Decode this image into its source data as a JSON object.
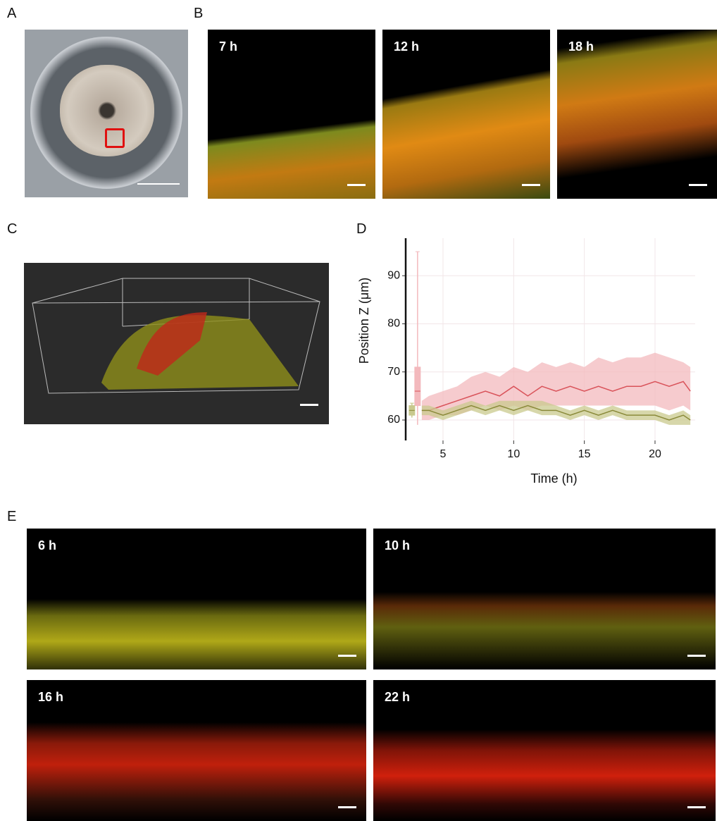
{
  "panels": [
    {
      "label": "A"
    },
    {
      "label": "B",
      "images": [
        "7 h",
        "12 h",
        "18 h"
      ]
    },
    {
      "label": "C"
    },
    {
      "label": "D"
    },
    {
      "label": "E",
      "images": [
        "6 h",
        "10 h",
        "16 h",
        "22 h"
      ]
    }
  ],
  "chart_data": {
    "type": "line",
    "x_label": "Time (h)",
    "y_label": "Position Z (μm)",
    "x": [
      3.5,
      4,
      5,
      6,
      7,
      8,
      9,
      10,
      11,
      12,
      13,
      14,
      15,
      16,
      17,
      18,
      19,
      20,
      21,
      22,
      22.5
    ],
    "series": [
      {
        "color": "#d9535a",
        "band_color": "#f3b9bd",
        "values": [
          62,
          62,
          63,
          64,
          65,
          66,
          65,
          67,
          65,
          67,
          66,
          67,
          66,
          67,
          66,
          67,
          67,
          68,
          67,
          68,
          66
        ],
        "lower": [
          60,
          60,
          61,
          61,
          62,
          63,
          62,
          63,
          62,
          63,
          63,
          63,
          63,
          63,
          63,
          63,
          63,
          63,
          62,
          63,
          62
        ],
        "upper": [
          64,
          65,
          66,
          67,
          69,
          70,
          69,
          71,
          70,
          72,
          71,
          72,
          71,
          73,
          72,
          73,
          73,
          74,
          73,
          72,
          71
        ],
        "box": {
          "x": 3.2,
          "min": 59,
          "q1": 63,
          "median": 66,
          "q3": 71,
          "max": 95
        }
      },
      {
        "color": "#8a8a3a",
        "band_color": "#c9c98e",
        "values": [
          62,
          62,
          61,
          62,
          63,
          62,
          63,
          62,
          63,
          62,
          62,
          61,
          62,
          61,
          62,
          61,
          61,
          61,
          60,
          61,
          60
        ],
        "lower": [
          61,
          61,
          60,
          61,
          62,
          61,
          62,
          61,
          62,
          61,
          61,
          60,
          61,
          60,
          61,
          60,
          60,
          60,
          59,
          59,
          59
        ],
        "upper": [
          63,
          63,
          62,
          63,
          64,
          63,
          64,
          64,
          64,
          64,
          63,
          62,
          63,
          62,
          63,
          62,
          62,
          62,
          61,
          62,
          61
        ],
        "box": {
          "x": 2.8,
          "min": 60.5,
          "q1": 61,
          "median": 62,
          "q3": 63,
          "max": 63.5
        }
      }
    ],
    "xlim": [
      2.36,
      22.84
    ],
    "ylim": [
      55.75,
      97.8
    ],
    "xticks": [
      5,
      10,
      15,
      20
    ],
    "yticks": [
      60,
      70,
      80,
      90
    ],
    "grid": true
  }
}
